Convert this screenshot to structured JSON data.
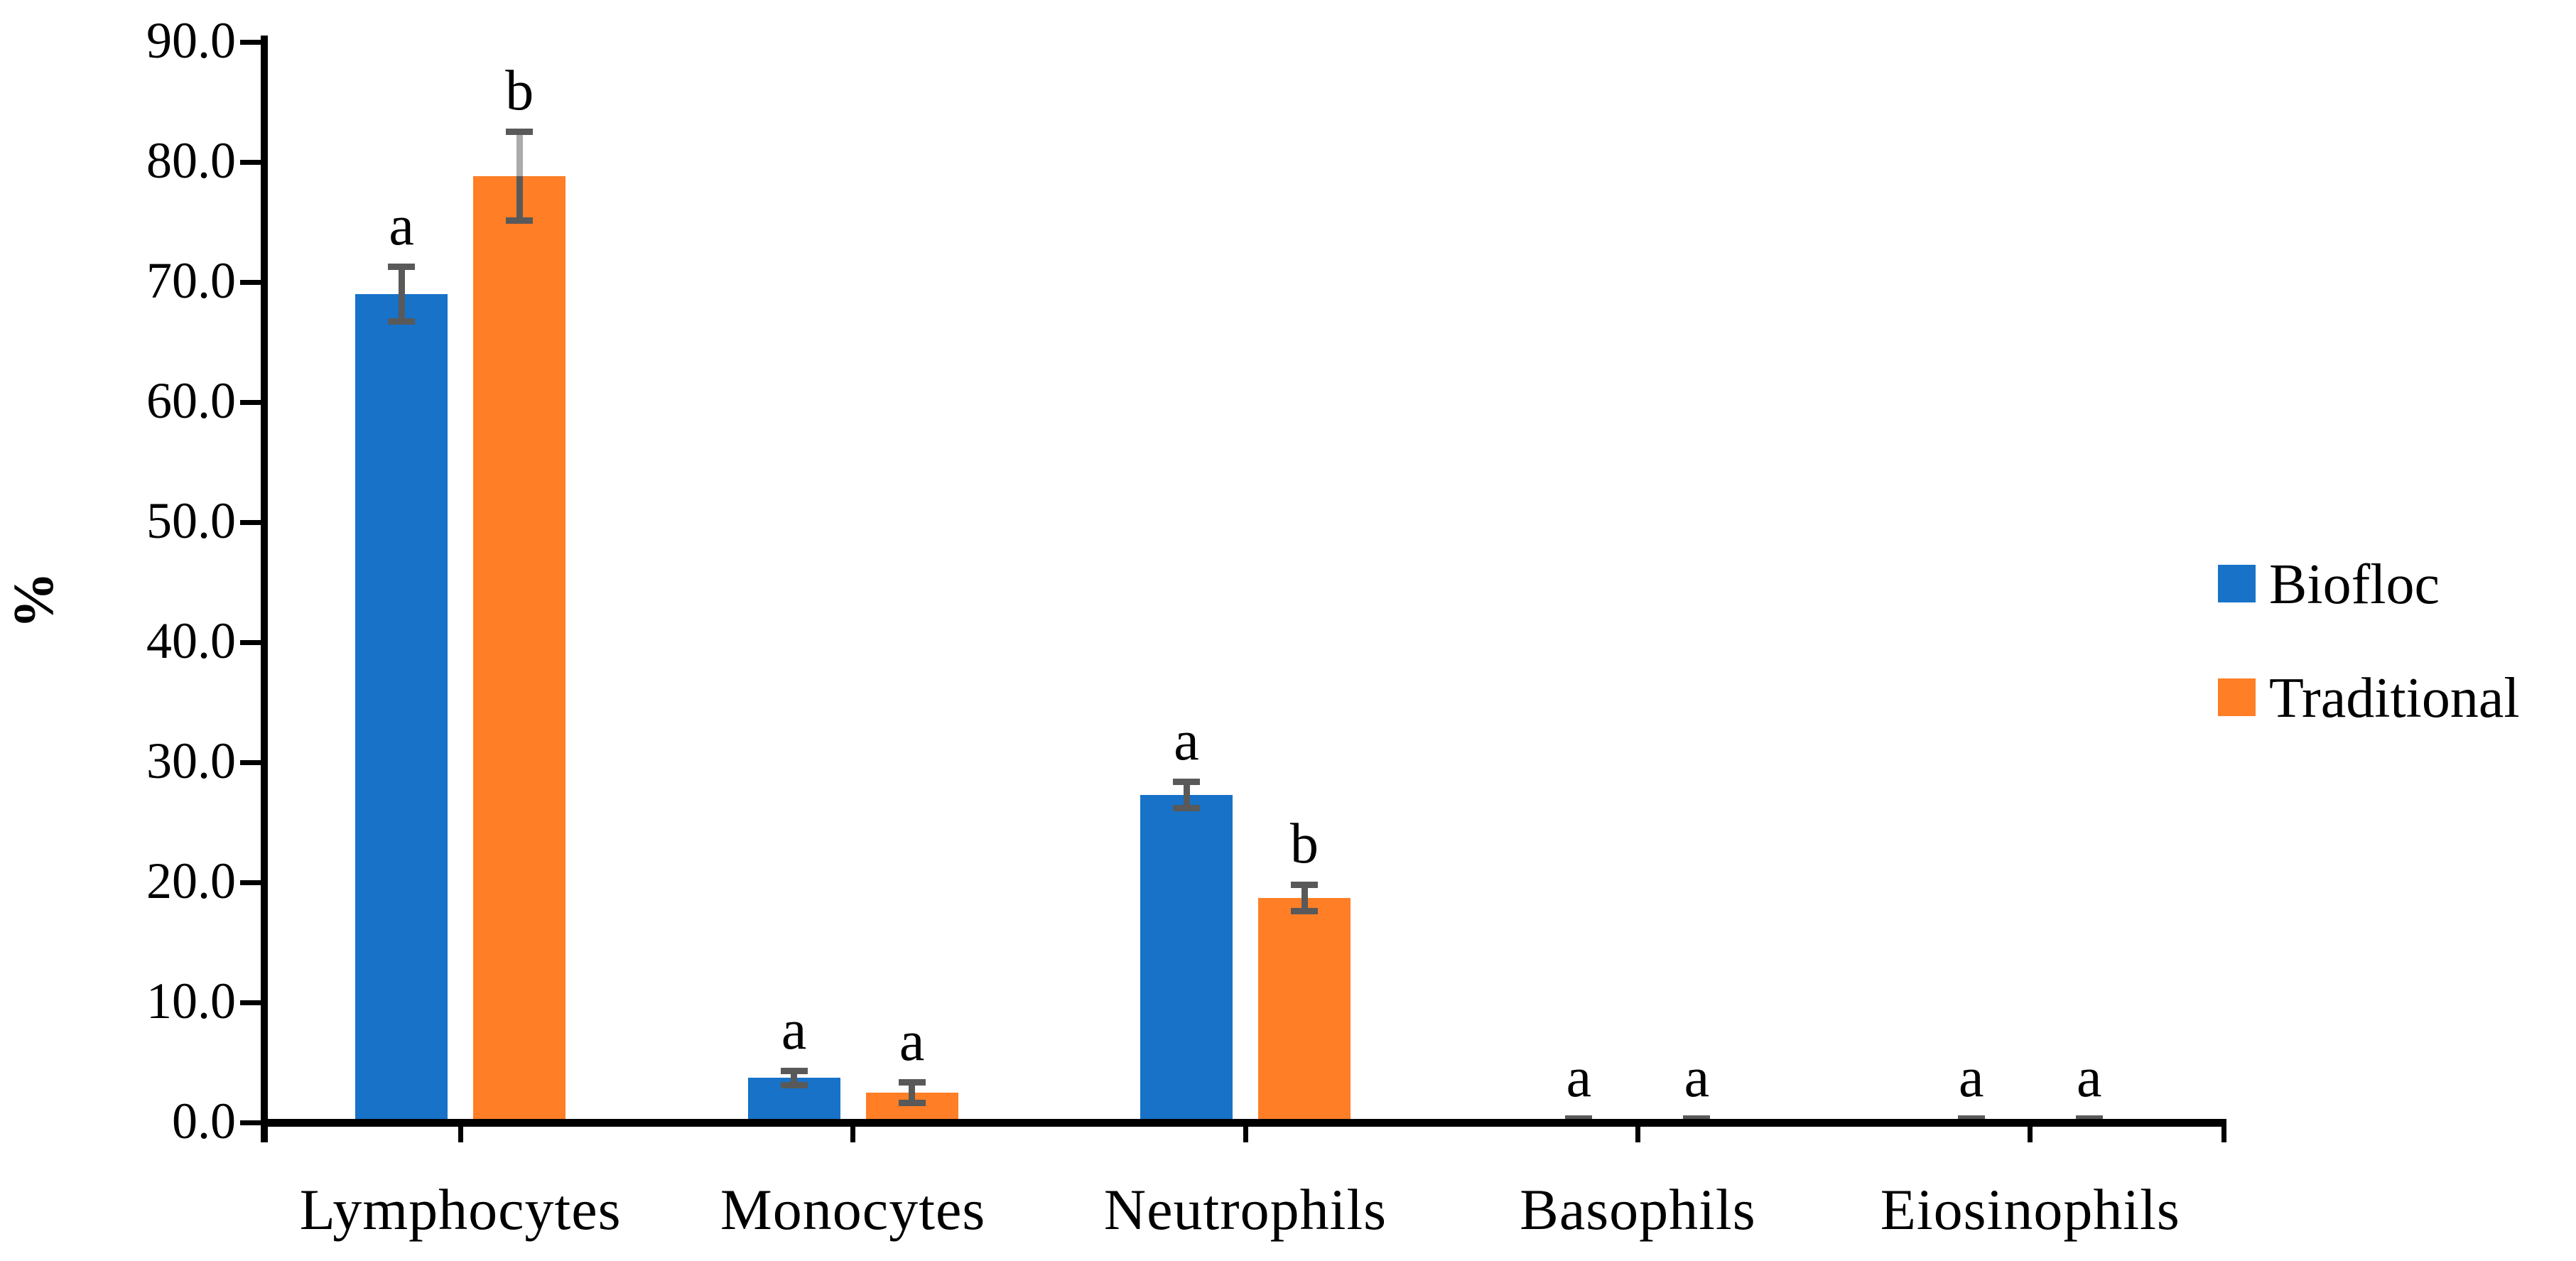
{
  "chart_data": {
    "type": "bar",
    "title": "",
    "xlabel": "",
    "ylabel": "%",
    "grid": false,
    "y_axis": {
      "min": 0,
      "max": 90,
      "step": 10,
      "tick_label_format": "one_decimal",
      "tick_labels": [
        "0.0",
        "10.0",
        "20.0",
        "30.0",
        "40.0",
        "50.0",
        "60.0",
        "70.0",
        "80.0",
        "90.0"
      ]
    },
    "categories": [
      "Lymphocytes",
      "Monocytes",
      "Neutrophils",
      "Basophils",
      "Eiosinophils"
    ],
    "series": [
      {
        "name": "Biofloc",
        "color": "#1772C8",
        "values": [
          69.0,
          3.7,
          27.3,
          0.0,
          0.0
        ],
        "errors": [
          2.3,
          0.6,
          1.1,
          0.35,
          0.35
        ],
        "letters": [
          "a",
          "a",
          "a",
          "a",
          "a"
        ]
      },
      {
        "name": "Traditional",
        "color": "#FF7E26",
        "values": [
          78.8,
          2.5,
          18.7,
          0.0,
          0.0
        ],
        "errors": [
          3.7,
          0.85,
          1.1,
          0.35,
          0.35
        ],
        "letters": [
          "b",
          "a",
          "b",
          "a",
          "a"
        ]
      }
    ],
    "error_bar_color": "#595959",
    "error_bar_light_color": "#ABABAB",
    "legend": {
      "position": "right",
      "entries": [
        {
          "label": "Biofloc",
          "color": "#1772C8"
        },
        {
          "label": "Traditional",
          "color": "#FF7E26"
        }
      ]
    }
  }
}
